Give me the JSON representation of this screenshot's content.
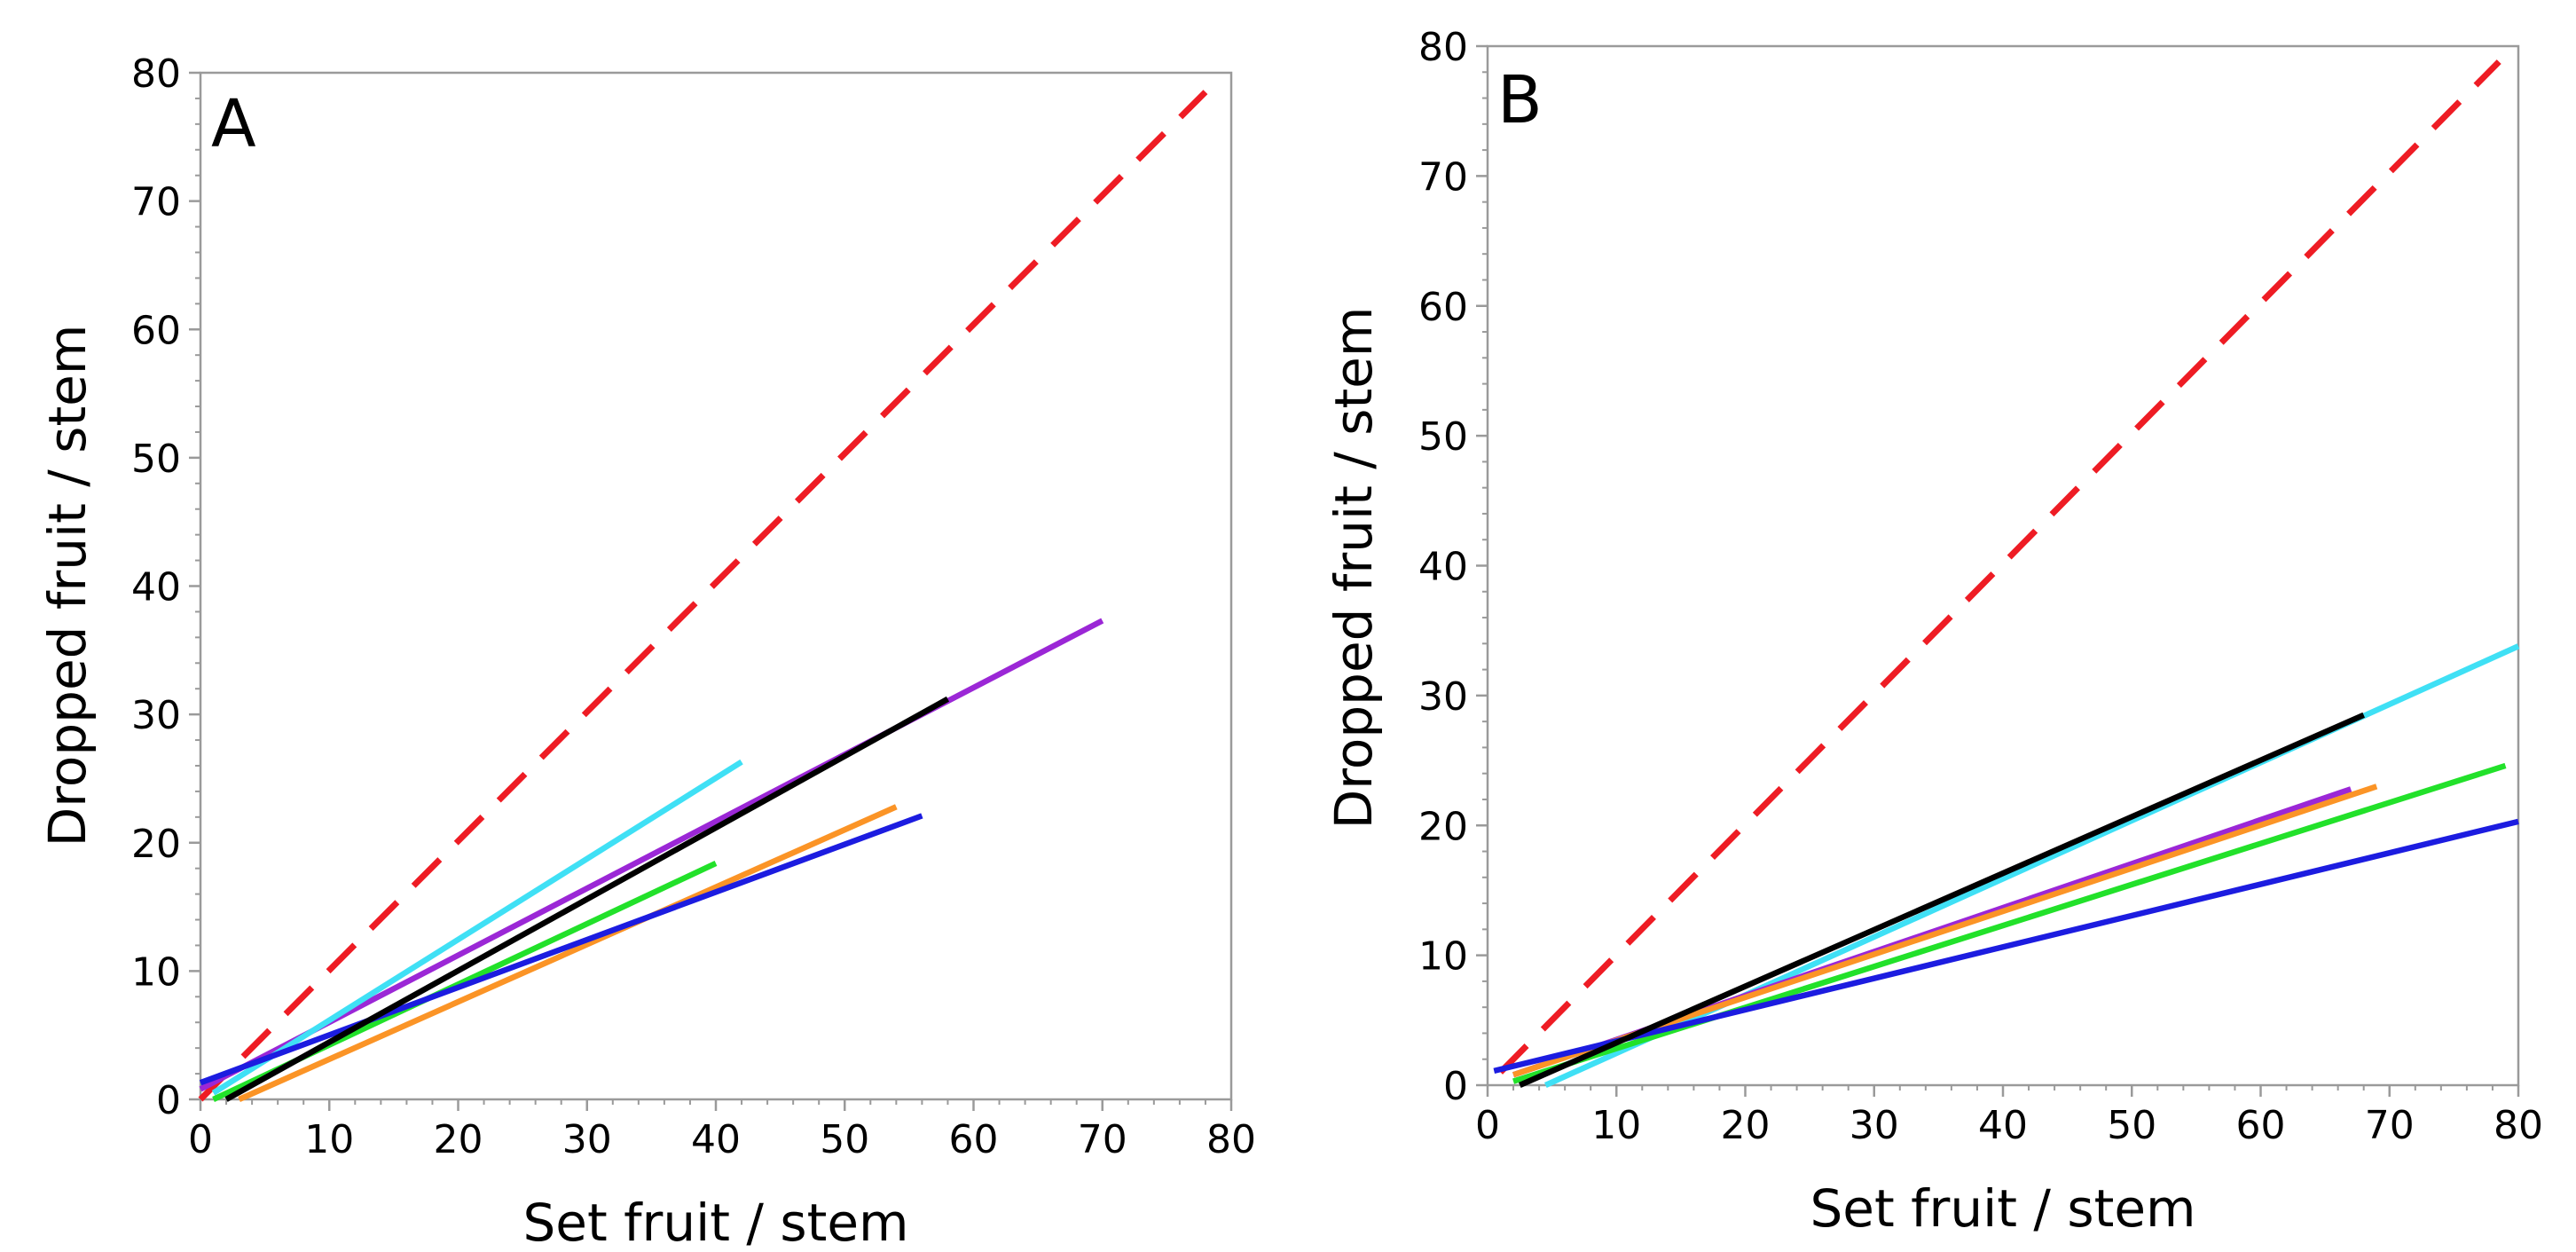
{
  "chart_data": [
    {
      "type": "line",
      "panel_label": "A",
      "title": "",
      "xlabel": "Set fruit / stem",
      "ylabel": "Dropped fruit / stem",
      "xlim": [
        0,
        80
      ],
      "ylim": [
        0,
        80
      ],
      "xticks": [
        0,
        10,
        20,
        30,
        40,
        50,
        60,
        70,
        80
      ],
      "yticks": [
        0,
        10,
        20,
        30,
        40,
        50,
        60,
        70,
        80
      ],
      "grid": false,
      "legend": "none",
      "series": [
        {
          "name": "1:1 reference",
          "color": "#ee1c24",
          "dashed": true,
          "x": [
            0,
            78
          ],
          "y": [
            0,
            78.5
          ]
        },
        {
          "name": "purple",
          "color": "#9b27d6",
          "dashed": false,
          "x": [
            0,
            70
          ],
          "y": [
            0.8,
            37.3
          ]
        },
        {
          "name": "cyan",
          "color": "#3fe0f5",
          "dashed": false,
          "x": [
            1,
            42
          ],
          "y": [
            0.5,
            26.3
          ]
        },
        {
          "name": "green",
          "color": "#22e12a",
          "dashed": false,
          "x": [
            1,
            40
          ],
          "y": [
            0,
            18.4
          ]
        },
        {
          "name": "orange",
          "color": "#fb9426",
          "dashed": false,
          "x": [
            3,
            54
          ],
          "y": [
            0,
            22.8
          ]
        },
        {
          "name": "blue",
          "color": "#1c1ce0",
          "dashed": false,
          "x": [
            0,
            56
          ],
          "y": [
            1.3,
            22.1
          ]
        },
        {
          "name": "black",
          "color": "#000000",
          "dashed": false,
          "x": [
            2,
            58
          ],
          "y": [
            0,
            31.2
          ]
        }
      ]
    },
    {
      "type": "line",
      "panel_label": "B",
      "title": "",
      "xlabel": "Set fruit / stem",
      "ylabel": "Dropped fruit / stem",
      "xlim": [
        0,
        80
      ],
      "ylim": [
        0,
        80
      ],
      "xticks": [
        0,
        10,
        20,
        30,
        40,
        50,
        60,
        70,
        80
      ],
      "yticks": [
        0,
        10,
        20,
        30,
        40,
        50,
        60,
        70,
        80
      ],
      "grid": false,
      "legend": "none",
      "series": [
        {
          "name": "1:1 reference",
          "color": "#ee1c24",
          "dashed": true,
          "x": [
            1,
            78.5
          ],
          "y": [
            1,
            78.8
          ]
        },
        {
          "name": "cyan",
          "color": "#3fe0f5",
          "dashed": false,
          "x": [
            4.5,
            80
          ],
          "y": [
            0,
            33.8
          ]
        },
        {
          "name": "purple",
          "color": "#9b27d6",
          "dashed": false,
          "x": [
            2,
            67
          ],
          "y": [
            0.8,
            22.8
          ]
        },
        {
          "name": "orange",
          "color": "#fb9426",
          "dashed": false,
          "x": [
            2,
            69
          ],
          "y": [
            0.8,
            23.0
          ]
        },
        {
          "name": "green",
          "color": "#22e12a",
          "dashed": false,
          "x": [
            2,
            79
          ],
          "y": [
            0.3,
            24.6
          ]
        },
        {
          "name": "blue",
          "color": "#1c1ce0",
          "dashed": false,
          "x": [
            0.5,
            80
          ],
          "y": [
            1.1,
            20.3
          ]
        },
        {
          "name": "black",
          "color": "#000000",
          "dashed": false,
          "x": [
            2.5,
            68
          ],
          "y": [
            0,
            28.5
          ]
        }
      ]
    }
  ]
}
